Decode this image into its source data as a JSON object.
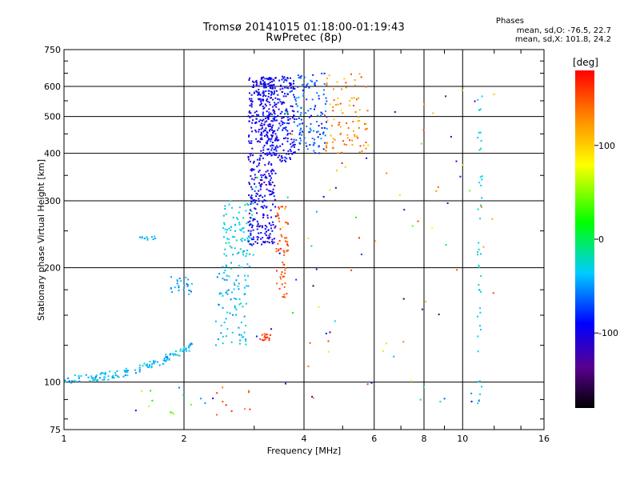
{
  "chart_data": {
    "type": "scatter",
    "title": "Tromsø 20141015 01:18:00-01:19:43",
    "subtitle": "RwPretec (8p)",
    "xlabel": "Frequency [MHz]",
    "ylabel": "Stationary phase Virtual Height [km]",
    "x_scale": "log",
    "y_scale": "log",
    "xlim": [
      1,
      16
    ],
    "ylim": [
      75,
      750
    ],
    "x_ticks": [
      "1",
      "2",
      "4",
      "6",
      "8",
      "10",
      "16"
    ],
    "x_tick_values": [
      1,
      2,
      4,
      6,
      8,
      10,
      16
    ],
    "y_ticks": [
      "75",
      "100",
      "200",
      "300",
      "400",
      "500",
      "600",
      "750"
    ],
    "y_tick_values": [
      75,
      100,
      200,
      300,
      400,
      500,
      600,
      750
    ],
    "grid": true,
    "stats_header": "Phases",
    "stats_line1": "mean, sd,O: -76.5, 22.7",
    "stats_line2": "mean, sd,X: 101.8, 24.2",
    "colorbar": {
      "unit": "[deg]",
      "range": [
        -180,
        180
      ],
      "ticks": [
        "100",
        "0",
        "-100"
      ],
      "tick_values": [
        100,
        0,
        -100
      ]
    },
    "clusters": [
      {
        "x": [
          1.0,
          2.1
        ],
        "y": [
          102,
          125
        ],
        "phase": [
          -20,
          -60
        ],
        "n": 140,
        "curve": "rising"
      },
      {
        "x": [
          1.55,
          1.7
        ],
        "y": [
          236,
          242
        ],
        "phase": [
          -50,
          -30
        ],
        "n": 12
      },
      {
        "x": [
          1.85,
          2.1
        ],
        "y": [
          170,
          190
        ],
        "phase": [
          -60,
          -30
        ],
        "n": 25
      },
      {
        "x": [
          2.4,
          2.9
        ],
        "y": [
          125,
          200
        ],
        "phase": [
          -60,
          -20
        ],
        "n": 80
      },
      {
        "x": [
          2.5,
          3.0
        ],
        "y": [
          200,
          300
        ],
        "phase": [
          -50,
          -15
        ],
        "n": 90
      },
      {
        "x": [
          2.9,
          3.4
        ],
        "y": [
          230,
          640
        ],
        "phase": [
          -120,
          -80
        ],
        "n": 420
      },
      {
        "x": [
          3.1,
          3.8
        ],
        "y": [
          380,
          640
        ],
        "phase": [
          -115,
          -70
        ],
        "n": 260
      },
      {
        "x": [
          3.8,
          4.6
        ],
        "y": [
          400,
          650
        ],
        "phase": [
          -90,
          -50
        ],
        "n": 120
      },
      {
        "x": [
          3.4,
          3.65
        ],
        "y": [
          165,
          290
        ],
        "phase": [
          140,
          165
        ],
        "n": 60
      },
      {
        "x": [
          3.1,
          3.3
        ],
        "y": [
          128,
          134
        ],
        "phase": [
          150,
          170
        ],
        "n": 15
      },
      {
        "x": [
          4.5,
          5.8
        ],
        "y": [
          400,
          650
        ],
        "phase": [
          100,
          160
        ],
        "n": 90
      },
      {
        "x": [
          3.0,
          12.0
        ],
        "y": [
          85,
          650
        ],
        "phase": [
          -160,
          170
        ],
        "n": 90
      },
      {
        "x": [
          10.9,
          11.2
        ],
        "y": [
          85,
          580
        ],
        "phase": [
          -40,
          -20
        ],
        "n": 45
      },
      {
        "x": [
          2.4,
          3.0
        ],
        "y": [
          82,
          98
        ],
        "phase": [
          120,
          170
        ],
        "n": 10
      },
      {
        "x": [
          1.5,
          2.4
        ],
        "y": [
          82,
          98
        ],
        "phase": [
          -120,
          170
        ],
        "n": 14
      }
    ]
  }
}
